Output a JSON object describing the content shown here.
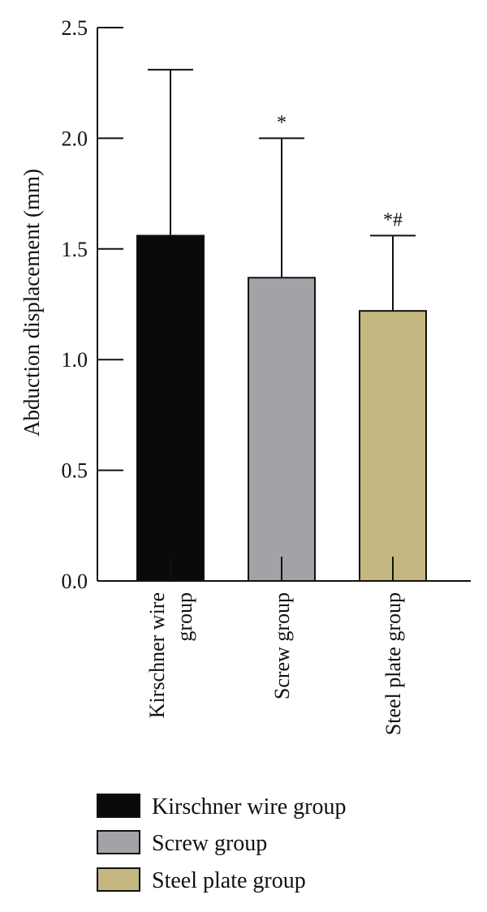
{
  "chart_data": {
    "type": "bar",
    "title": "",
    "xlabel": "",
    "ylabel": "Abduction displacement (mm)",
    "ylim": [
      0,
      2.5
    ],
    "yticks": [
      "0.0",
      "0.5",
      "1.0",
      "1.5",
      "2.0",
      "2.5"
    ],
    "ytick_values": [
      0,
      0.5,
      1.0,
      1.5,
      2.0,
      2.5
    ],
    "categories": [
      {
        "lines": [
          "Kirschner wire",
          "group"
        ],
        "name": "Kirschner wire group"
      },
      {
        "lines": [
          "Screw group"
        ],
        "name": "Screw group"
      },
      {
        "lines": [
          "Steel plate group"
        ],
        "name": "Steel plate group"
      }
    ],
    "values": [
      1.56,
      1.37,
      1.22
    ],
    "errors": [
      0.75,
      0.63,
      0.34
    ],
    "significance": [
      "",
      "*",
      "*#"
    ],
    "colors": [
      "#0a0a0a",
      "#a3a3a7",
      "#c4b77f"
    ],
    "legend": {
      "position": "bottom",
      "entries": [
        "Kirschner wire group",
        "Screw group",
        "Steel plate group"
      ]
    },
    "grid": false
  }
}
